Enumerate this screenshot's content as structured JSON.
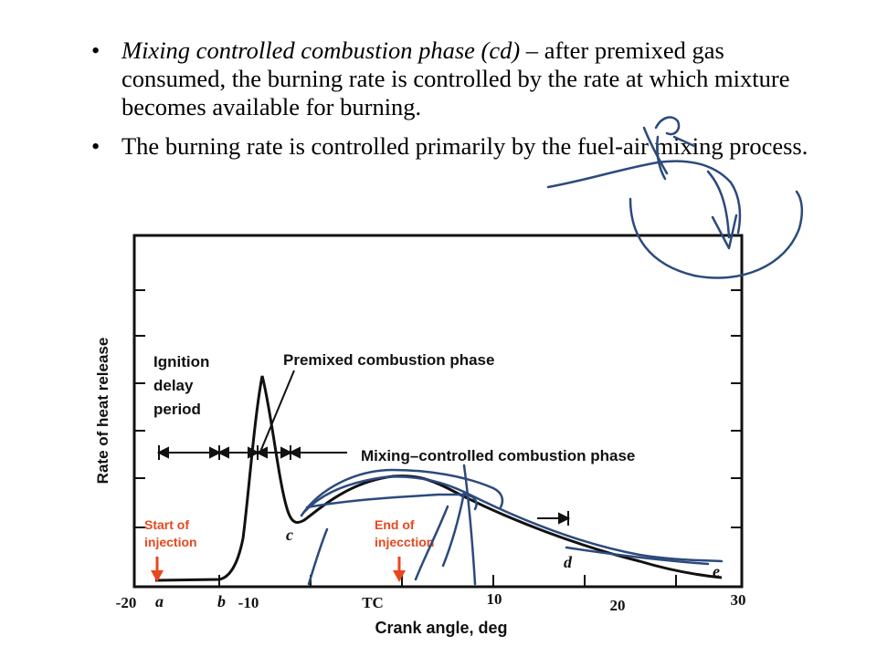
{
  "bullets": [
    {
      "lead": "Mixing controlled combustion phase (cd) –",
      "rest": " after premixed gas consumed, the burning rate is controlled by the rate at which mixture becomes available for burning."
    },
    {
      "lead": "",
      "rest": "The burning rate is controlled primarily by the fuel-air mixing process."
    }
  ],
  "chart": {
    "ylabel": "Rate of heat release",
    "xlabel": "Crank angle, deg",
    "x_ticks": [
      "-20",
      "-10",
      "TC",
      "10",
      "20",
      "30"
    ],
    "point_labels": [
      "a",
      "b",
      "c",
      "d",
      "e"
    ],
    "annotations": {
      "ignition_line1": "Ignition",
      "ignition_line2": "delay",
      "ignition_line3": "period",
      "premixed": "Premixed combustion phase",
      "mixing": "Mixing–controlled combustion phase"
    },
    "markers": {
      "start_line1": "Start of",
      "start_line2": "injection",
      "end_line1": "End of",
      "end_line2": "injecction"
    },
    "colors": {
      "curve": "#111111",
      "annotation_pen": "#2c4a7c",
      "marker": "#e8471e"
    }
  }
}
